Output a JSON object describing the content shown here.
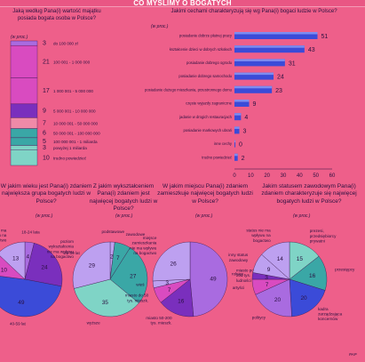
{
  "page_title": "CO MYŚLIMY O BOGATYCH",
  "unit": "(w proc.)",
  "questions": {
    "q1": "Jaką według Pana(i) wartość majątku posiada bogata osoba w Polsce?",
    "q2": "Jakimi cechami charakteryzują się wg Pana(i) bogaci ludzie w Polsce?",
    "q3": "W jakim wieku jest Pana(i) zdaniem największa grupa bogatych ludzi w Polsce?",
    "q4": "Z jakim wykształceniem Pana(i) zdaniem jest najwięcej bogatych ludzi w Polsce?",
    "q5": "W jakim miejscu Pana(i) zdaniem zamieszkuje najwięcej bogatych ludzi w Polsce?",
    "q6": "Jakim statusem zawodowym Pana(i) zdaniem charakteryzuje się najwięcej bogatych ludzi w Polsce?"
  },
  "footer": "PAP",
  "colors": {
    "bg": "#ee5f8a",
    "pink": "#d94bc0",
    "purple": "#7a2fbd",
    "violet": "#a96be0",
    "teal": "#3aa7a6",
    "mint": "#7fd4c6",
    "blue": "#3b4bd8",
    "lilac": "#bda0f0"
  },
  "chart_data": [
    {
      "type": "bar",
      "title": "Jaką według Pana(i) wartość majątku posiada bogata osoba w Polsce?",
      "unit": "(w proc.)",
      "categories": [
        "do 100 000 zł",
        "100 001 - 1 000 000",
        "1 000 001 - 5 000 000",
        "5 000 001 - 10 000 000",
        "10 000 001 - 50 000 000",
        "50 000 001 - 100 000 000",
        "100 000 001 - 1 miliarda",
        "powyżej 1 miliarda",
        "trudno powiedzieć"
      ],
      "values": [
        3,
        21,
        17,
        9,
        7,
        6,
        5,
        3,
        10
      ],
      "colors": [
        "#a96be0",
        "#d94bc0",
        "#d94bc0",
        "#7a2fbd",
        "#f08aa8",
        "#3aa7a6",
        "#3aa7a6",
        "#7fd4c6",
        "#7fd4c6"
      ]
    },
    {
      "type": "bar",
      "title": "Jakimi cechami charakteryzują się wg Pana(i) bogaci ludzie w Polsce?",
      "unit": "(w proc.)",
      "categories": [
        "posiadanie dobrze płatnej pracy",
        "kształcenie dzieci w dobrych szkołach",
        "posiadanie dobrego ogrodu",
        "posiadanie dobrego samochodu",
        "posiadanie dużego mieszkania, przestronnego domu",
        "częste wyjazdy zagraniczne",
        "jadanie w drogich restauracjach",
        "posiadanie markowych ubrań",
        "inne cechy",
        "trudno powiedzieć"
      ],
      "values": [
        51,
        43,
        31,
        24,
        23,
        9,
        4,
        3,
        0,
        2
      ],
      "xlim": [
        0,
        60
      ],
      "xticks": [
        0,
        10,
        20,
        30,
        40,
        50,
        60
      ]
    },
    {
      "type": "pie",
      "title": "W jakim wieku jest Pana(i) zdaniem największa grupa bogatych ludzi w Polsce?",
      "unit": "(w proc.)",
      "categories": [
        "18-24 lata",
        "25-39 lat",
        "40-59 lat",
        "powyżej 59 lat",
        "wiek nie ma wpływu na bogactwo"
      ],
      "values": [
        4,
        24,
        49,
        10,
        13
      ]
    },
    {
      "type": "pie",
      "title": "Z jakim wykształceniem Pana(i) zdaniem jest najwięcej bogatych ludzi w Polsce?",
      "unit": "(w proc.)",
      "categories": [
        "podstawowe",
        "zawodowe",
        "średnie",
        "wyższe",
        "poziom wykształcenia nie ma wpływu na bogactwo"
      ],
      "values": [
        2,
        7,
        27,
        35,
        29
      ]
    },
    {
      "type": "pie",
      "title": "W jakim miejscu Pana(i) zdaniem zamieszkuje najwięcej bogatych ludzi w Polsce?",
      "unit": "(w proc.)",
      "categories": [
        "miasto powyżej 200 tys. ludności",
        "miasto 50-200 tys. mieszk.",
        "miasto do 50 tys. mieszk.",
        "wieś",
        "miejsce zamieszkania nie ma wpływu na bogactwo"
      ],
      "values": [
        49,
        16,
        7,
        3,
        26
      ]
    },
    {
      "type": "pie",
      "title": "Jakim statusem zawodowym Pana(i) zdaniem charakteryzuje się najwięcej bogatych ludzi w Polsce?",
      "unit": "(w proc.)",
      "categories": [
        "prezesi, przedsiębiorcy prywatni",
        "przestępcy",
        "kadra zarządzająca koncernów",
        "politycy",
        "artyści",
        "rolnicy",
        "inny status zawodowy",
        "status nie ma wpływu na bogactwo"
      ],
      "values": [
        15,
        16,
        20,
        20,
        7,
        3,
        9,
        14
      ]
    }
  ]
}
